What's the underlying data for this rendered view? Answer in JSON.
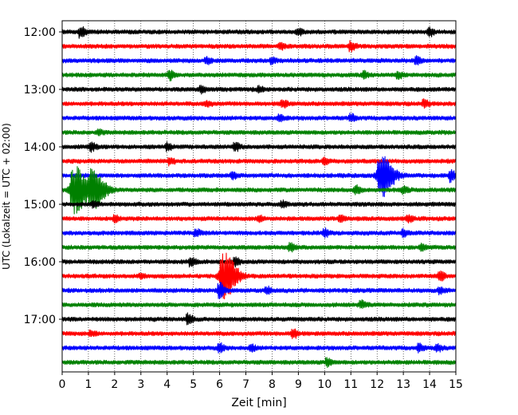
{
  "chart_data": {
    "type": "line",
    "subtype": "seismogram-helicorder",
    "title": "",
    "xlabel": "Zeit  [min]",
    "ylabel": "UTC (Lokalzeit = UTC + 02:00)",
    "xlim": [
      0,
      15
    ],
    "x_ticks": [
      "0",
      "1",
      "2",
      "3",
      "4",
      "5",
      "6",
      "7",
      "8",
      "9",
      "10",
      "11",
      "12",
      "13",
      "14",
      "15"
    ],
    "y_tick_labels": [
      "12:00",
      "13:00",
      "14:00",
      "15:00",
      "16:00",
      "17:00"
    ],
    "grid": "vertical dotted at each minute",
    "trace_interval_min": 15,
    "trace_colors": [
      "#000000",
      "#ff0000",
      "#0000ff",
      "#008000"
    ],
    "traces": [
      {
        "start": "12:00",
        "color": "#000000",
        "events": [
          {
            "t": 0.7,
            "amp": 0.9
          },
          {
            "t": 9,
            "amp": 0.6
          },
          {
            "t": 14,
            "amp": 0.6
          }
        ]
      },
      {
        "start": "12:15",
        "color": "#ff0000",
        "events": [
          {
            "t": 8.3,
            "amp": 0.5
          },
          {
            "t": 11,
            "amp": 0.8
          }
        ]
      },
      {
        "start": "12:30",
        "color": "#0000ff",
        "events": [
          {
            "t": 5.5,
            "amp": 0.5
          },
          {
            "t": 8,
            "amp": 0.4
          },
          {
            "t": 13.5,
            "amp": 0.6
          }
        ]
      },
      {
        "start": "12:45",
        "color": "#008000",
        "events": [
          {
            "t": 4.1,
            "amp": 0.8
          },
          {
            "t": 11.5,
            "amp": 0.5
          },
          {
            "t": 12.8,
            "amp": 0.5
          }
        ]
      },
      {
        "start": "13:00",
        "color": "#000000",
        "events": [
          {
            "t": 5.3,
            "amp": 0.6
          },
          {
            "t": 7.5,
            "amp": 0.4
          }
        ]
      },
      {
        "start": "13:15",
        "color": "#ff0000",
        "events": [
          {
            "t": 5.5,
            "amp": 0.4
          },
          {
            "t": 8.4,
            "amp": 0.6
          },
          {
            "t": 13.8,
            "amp": 0.5
          }
        ]
      },
      {
        "start": "13:30",
        "color": "#0000ff",
        "events": [
          {
            "t": 8.3,
            "amp": 0.5
          },
          {
            "t": 11,
            "amp": 0.5
          }
        ]
      },
      {
        "start": "13:45",
        "color": "#008000",
        "events": [
          {
            "t": 1.4,
            "amp": 0.3
          }
        ]
      },
      {
        "start": "14:00",
        "color": "#000000",
        "events": [
          {
            "t": 1.1,
            "amp": 0.7
          },
          {
            "t": 4,
            "amp": 0.5
          },
          {
            "t": 6.6,
            "amp": 0.6
          }
        ]
      },
      {
        "start": "14:15",
        "color": "#ff0000",
        "events": [
          {
            "t": 4.1,
            "amp": 0.5
          },
          {
            "t": 10,
            "amp": 0.5
          }
        ]
      },
      {
        "start": "14:30",
        "color": "#0000ff",
        "events": [
          {
            "t": 6.5,
            "amp": 0.5
          },
          {
            "t": 12.2,
            "amp": 3.5
          },
          {
            "t": 14.8,
            "amp": 1.0
          }
        ]
      },
      {
        "start": "14:45",
        "color": "#008000",
        "events": [
          {
            "t": 0.5,
            "amp": 4.0
          },
          {
            "t": 1.2,
            "amp": 3.0
          },
          {
            "t": 11.2,
            "amp": 0.6
          },
          {
            "t": 13,
            "amp": 0.5
          }
        ]
      },
      {
        "start": "15:00",
        "color": "#000000",
        "events": [
          {
            "t": 1.2,
            "amp": 0.4
          },
          {
            "t": 8.4,
            "amp": 0.4
          }
        ]
      },
      {
        "start": "15:15",
        "color": "#ff0000",
        "events": [
          {
            "t": 2,
            "amp": 0.5
          },
          {
            "t": 7.5,
            "amp": 0.4
          },
          {
            "t": 10.6,
            "amp": 0.5
          },
          {
            "t": 13.2,
            "amp": 0.5
          }
        ]
      },
      {
        "start": "15:30",
        "color": "#0000ff",
        "events": [
          {
            "t": 5.1,
            "amp": 0.5
          },
          {
            "t": 10,
            "amp": 0.6
          },
          {
            "t": 13,
            "amp": 0.5
          }
        ]
      },
      {
        "start": "15:45",
        "color": "#008000",
        "events": [
          {
            "t": 8.7,
            "amp": 0.6
          },
          {
            "t": 13.7,
            "amp": 0.4
          }
        ]
      },
      {
        "start": "16:00",
        "color": "#000000",
        "events": [
          {
            "t": 4.9,
            "amp": 0.7
          },
          {
            "t": 6.6,
            "amp": 0.6
          }
        ]
      },
      {
        "start": "16:15",
        "color": "#ff0000",
        "events": [
          {
            "t": 6.2,
            "amp": 3.8
          },
          {
            "t": 14.4,
            "amp": 0.8
          },
          {
            "t": 3,
            "amp": 0.3
          }
        ]
      },
      {
        "start": "16:30",
        "color": "#0000ff",
        "events": [
          {
            "t": 6,
            "amp": 1.2
          },
          {
            "t": 7.8,
            "amp": 0.5
          },
          {
            "t": 14.4,
            "amp": 0.5
          }
        ]
      },
      {
        "start": "16:45",
        "color": "#008000",
        "events": [
          {
            "t": 11.4,
            "amp": 0.6
          }
        ]
      },
      {
        "start": "17:00",
        "color": "#000000",
        "events": [
          {
            "t": 4.8,
            "amp": 0.9
          }
        ]
      },
      {
        "start": "17:15",
        "color": "#ff0000",
        "events": [
          {
            "t": 1.1,
            "amp": 0.4
          },
          {
            "t": 8.8,
            "amp": 0.7
          }
        ]
      },
      {
        "start": "17:30",
        "color": "#0000ff",
        "events": [
          {
            "t": 6,
            "amp": 0.6
          },
          {
            "t": 7.2,
            "amp": 0.5
          },
          {
            "t": 13.6,
            "amp": 0.6
          },
          {
            "t": 14.3,
            "amp": 0.5
          }
        ]
      },
      {
        "start": "17:45",
        "color": "#008000",
        "events": [
          {
            "t": 10.1,
            "amp": 0.6
          }
        ]
      }
    ]
  }
}
